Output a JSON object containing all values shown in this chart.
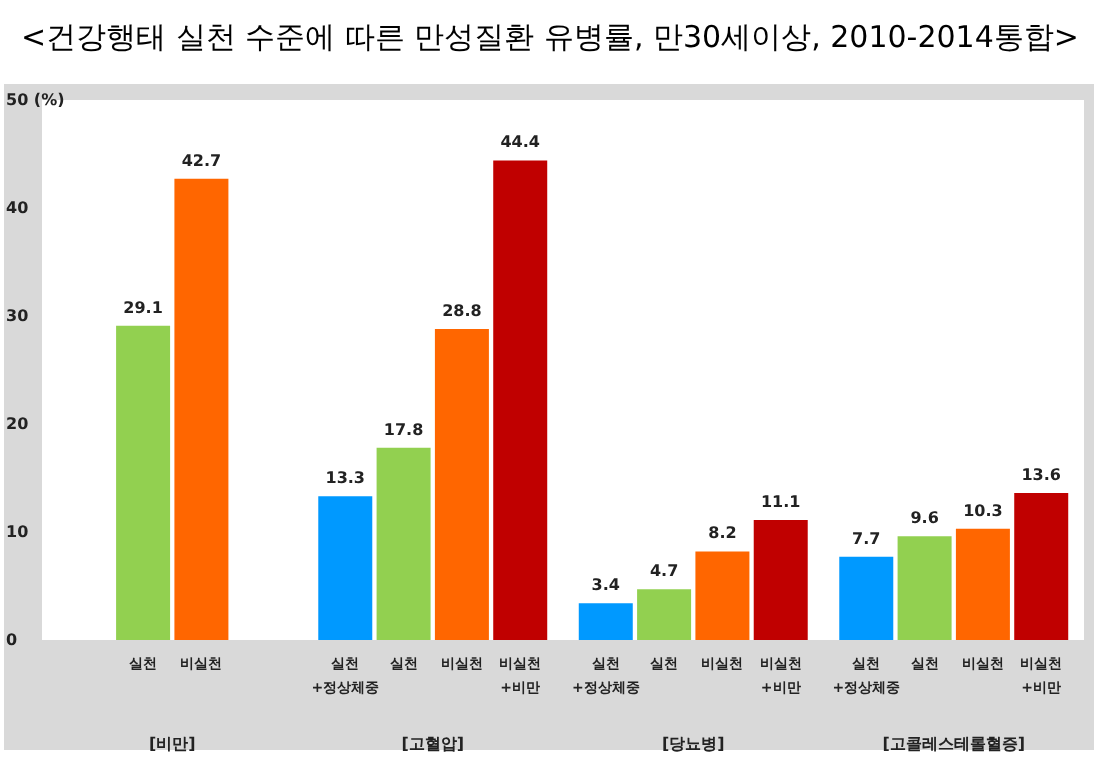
{
  "chart_data": {
    "type": "bar",
    "title": "<건강행태 실천 수준에 따른 만성질환 유병률, 만30세이상, 2010-2014통합>",
    "categories": [
      "[비만]",
      "[고혈압]",
      "[당뇨병]",
      "[고콜레스테롤혈증]"
    ],
    "series": [
      {
        "name": "실천\n+정상체중",
        "color": "#0099ff",
        "values": [
          null,
          13.3,
          3.4,
          7.7
        ]
      },
      {
        "name": "실천",
        "color": "#92d050",
        "values": [
          29.1,
          17.8,
          4.7,
          9.6
        ]
      },
      {
        "name": "비실천",
        "color": "#ff6600",
        "values": [
          42.7,
          28.8,
          8.2,
          10.3
        ]
      },
      {
        "name": "비실천\n+비만",
        "color": "#c00000",
        "values": [
          null,
          44.4,
          11.1,
          13.6
        ]
      }
    ],
    "ylim": [
      0,
      50
    ],
    "yticks": [
      0,
      10,
      20,
      30,
      40,
      {
        "value": 50,
        "label": "50 (%)"
      }
    ],
    "grid": false,
    "legend": false,
    "data_labels": true
  }
}
